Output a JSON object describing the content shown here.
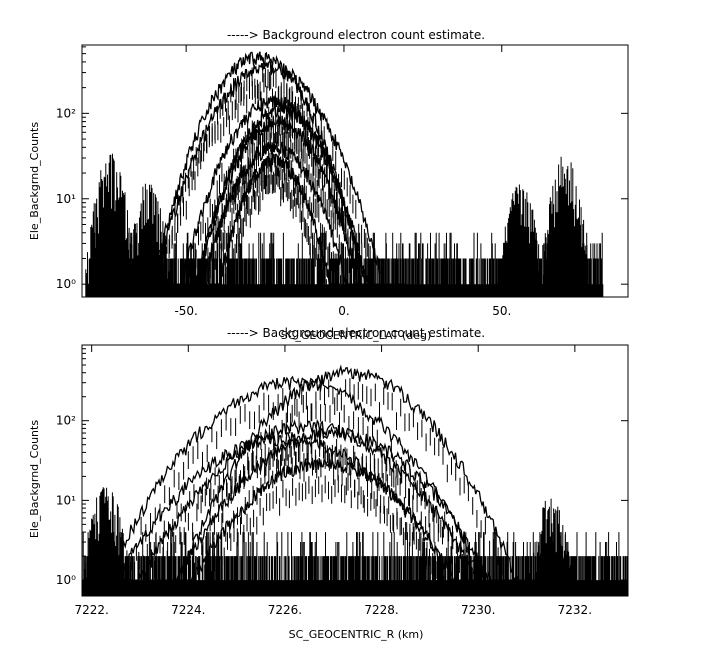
{
  "chart_data": [
    {
      "type": "line",
      "title": "-----> Background electron count estimate.",
      "xlabel": "SC_GEOCENTRIC_LAT (deg)",
      "ylabel": "Ele_Backgrnd_Counts",
      "xlim": [
        -83,
        90
      ],
      "ylim_log10": [
        -0.15,
        2.8
      ],
      "yscale": "log",
      "x_ticks": [
        {
          "value": -50,
          "label": "-50."
        },
        {
          "value": 0,
          "label": "0."
        },
        {
          "value": 50,
          "label": "50."
        }
      ],
      "y_ticks": [
        {
          "value": 1,
          "label": "10⁰"
        },
        {
          "value": 10,
          "label": "10¹"
        },
        {
          "value": 100,
          "label": "10²"
        }
      ],
      "grid": false,
      "x_data_range": [
        -81,
        82
      ],
      "noise_floor": [
        1,
        4
      ],
      "series": [
        {
          "peak_x": -27,
          "width": 25,
          "peak_value": 450
        },
        {
          "peak_x": -24,
          "width": 27,
          "peak_value": 350
        },
        {
          "peak_x": -22,
          "width": 22,
          "peak_value": 140
        },
        {
          "peak_x": -20,
          "width": 20,
          "peak_value": 110
        },
        {
          "peak_x": -21,
          "width": 19,
          "peak_value": 80
        },
        {
          "peak_x": -22,
          "width": 17,
          "peak_value": 40
        },
        {
          "peak_x": -22,
          "width": 13,
          "peak_value": 28
        }
      ],
      "side_bumps": [
        {
          "center_x": -74,
          "peak_value": 30
        },
        {
          "center_x": -62,
          "peak_value": 14
        },
        {
          "center_x": 56,
          "peak_value": 14
        },
        {
          "center_x": 70,
          "peak_value": 30
        }
      ]
    },
    {
      "type": "line",
      "title": "-----> Background electron count estimate.",
      "xlabel": "SC_GEOCENTRIC_R (km)",
      "ylabel": "Ele_Backgrnd_Counts",
      "xlim": [
        7221.8,
        7233.1
      ],
      "ylim_log10": [
        -0.2,
        2.95
      ],
      "yscale": "log",
      "x_ticks": [
        {
          "value": 7222,
          "label": "7222."
        },
        {
          "value": 7224,
          "label": "7224."
        },
        {
          "value": 7226,
          "label": "7226."
        },
        {
          "value": 7228,
          "label": "7228."
        },
        {
          "value": 7230,
          "label": "7230."
        },
        {
          "value": 7232,
          "label": "7232."
        }
      ],
      "y_ticks": [
        {
          "value": 1,
          "label": "10⁰"
        },
        {
          "value": 10,
          "label": "10¹"
        },
        {
          "value": 100,
          "label": "10²"
        }
      ],
      "grid": false,
      "x_data_range": [
        7221.8,
        7233.1
      ],
      "noise_floor": [
        1,
        4
      ],
      "series": [
        {
          "peak_x": 7227.3,
          "width": 2.6,
          "peak_value": 400
        },
        {
          "peak_x": 7226.2,
          "width": 2.9,
          "peak_value": 300
        },
        {
          "peak_x": 7226.5,
          "width": 2.6,
          "peak_value": 85
        },
        {
          "peak_x": 7227.0,
          "width": 2.4,
          "peak_value": 70
        },
        {
          "peak_x": 7226.8,
          "width": 2.0,
          "peak_value": 30
        },
        {
          "peak_x": 7226.0,
          "width": 2.6,
          "peak_value": 60
        }
      ],
      "side_bumps": [
        {
          "center_x": 7231.5,
          "peak_value": 10
        },
        {
          "center_x": 7222.3,
          "peak_value": 15
        }
      ]
    }
  ]
}
